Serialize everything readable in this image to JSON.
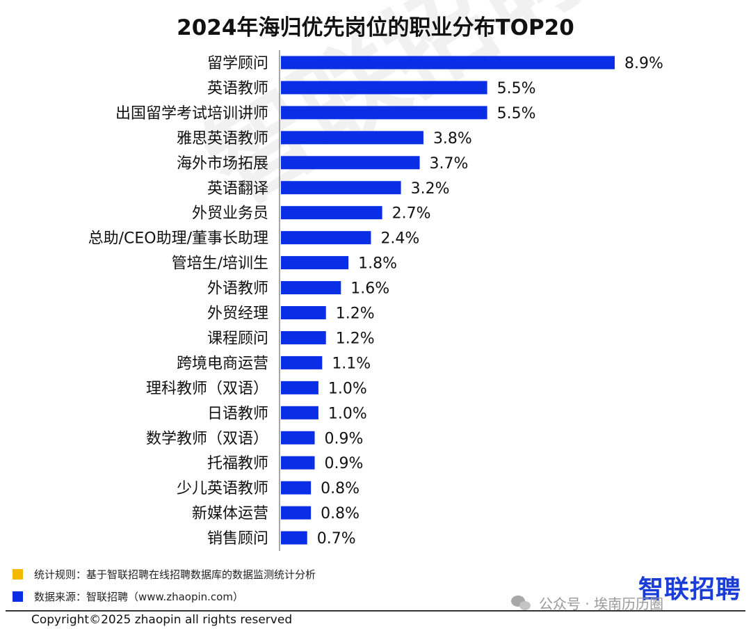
{
  "chart_data": {
    "type": "bar",
    "orientation": "horizontal",
    "title": "2024年海归优先岗位的职业分布TOP20",
    "categories": [
      "留学顾问",
      "英语教师",
      "出国留学考试培训讲师",
      "雅思英语教师",
      "海外市场拓展",
      "英语翻译",
      "外贸业务员",
      "总助/CEO助理/董事长助理",
      "管培生/培训生",
      "外语教师",
      "外贸经理",
      "课程顾问",
      "跨境电商运营",
      "理科教师（双语）",
      "日语教师",
      "数学教师（双语）",
      "托福教师",
      "少儿英语教师",
      "新媒体运营",
      "销售顾问"
    ],
    "values": [
      8.9,
      5.5,
      5.5,
      3.8,
      3.7,
      3.2,
      2.7,
      2.4,
      1.8,
      1.6,
      1.2,
      1.2,
      1.1,
      1.0,
      1.0,
      0.9,
      0.9,
      0.8,
      0.8,
      0.7
    ],
    "value_labels": [
      "8.9%",
      "5.5%",
      "5.5%",
      "3.8%",
      "3.7%",
      "3.2%",
      "2.7%",
      "2.4%",
      "1.8%",
      "1.6%",
      "1.2%",
      "1.2%",
      "1.1%",
      "1.0%",
      "1.0%",
      "0.9%",
      "0.9%",
      "0.8%",
      "0.8%",
      "0.7%"
    ],
    "unit": "%",
    "xlim": [
      0,
      9
    ],
    "grid": false,
    "bar_color": "#0a2ee6"
  },
  "watermark": "智联招聘",
  "legend": {
    "rule": {
      "text": "统计规则：基于智联招聘在线招聘数据库的数据监测统计分析",
      "color": "#f5b800"
    },
    "source": {
      "text": "数据来源：智联招聘（www.zhaopin.com）",
      "color": "#0a2ee6"
    }
  },
  "logo": {
    "text": "智联招聘",
    "color": "#1a3dd8"
  },
  "wechat_watermark": "公众号 · 埃南历历圈",
  "copyright": "Copyright©2025 zhaopin all rights reserved"
}
